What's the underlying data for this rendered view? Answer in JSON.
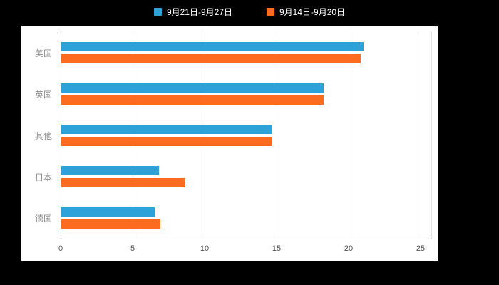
{
  "legend": {
    "items": [
      {
        "label": "9月21日-9月27日",
        "color": "#2DA2D8"
      },
      {
        "label": "9月14日-9月20日",
        "color": "#FD6B20"
      }
    ]
  },
  "chart_data": {
    "type": "bar",
    "orientation": "horizontal",
    "title": "",
    "xlabel": "",
    "ylabel": "",
    "categories": [
      "美国",
      "英国",
      "其他",
      "日本",
      "德国"
    ],
    "series": [
      {
        "name": "9月21日-9月27日",
        "color": "#2DA2D8",
        "values": [
          21.0,
          18.2,
          14.6,
          6.8,
          6.5
        ]
      },
      {
        "name": "9月14日-9月20日",
        "color": "#FD6B20",
        "values": [
          20.8,
          18.2,
          14.6,
          8.6,
          6.9
        ]
      }
    ],
    "xlim": [
      0,
      25
    ],
    "xticks": [
      0,
      5,
      10,
      15,
      20,
      25
    ],
    "grid": true,
    "legend_position": "top"
  },
  "colors": {
    "background": "#000000",
    "panel": "#ffffff",
    "grid_light": "#e3e3e3",
    "axis_dark": "#3a3a3a",
    "tick_text": "#555555",
    "category_text": "#8f8f8f",
    "legend_text": "#ffffff"
  }
}
